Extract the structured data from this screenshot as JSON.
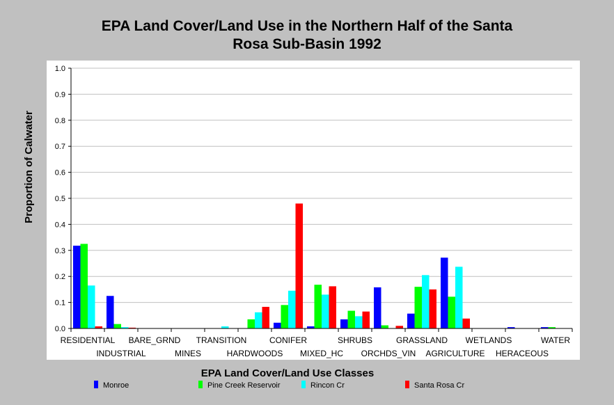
{
  "chart_data": {
    "type": "bar",
    "title_line1": "EPA Land Cover/Land Use in the Northern Half of the Santa",
    "title_line2": "Rosa Sub-Basin 1992",
    "xlabel": "EPA Land Cover/Land Use Classes",
    "ylabel": "Proportion of Calwater",
    "ylim": [
      0,
      1.0
    ],
    "yticks": [
      "0.0",
      "0.1",
      "0.2",
      "0.3",
      "0.4",
      "0.5",
      "0.6",
      "0.7",
      "0.8",
      "0.9",
      "1.0"
    ],
    "grid": true,
    "legend_position": "bottom",
    "categories": [
      "RESIDENTIAL",
      "INDUSTRIAL",
      "BARE_GRND",
      "MINES",
      "TRANSITION",
      "HARDWOODS",
      "CONIFER",
      "MIXED_HC",
      "SHRUBS",
      "ORCHDS_VIN",
      "GRASSLAND",
      "AGRICULTURE",
      "WETLANDS",
      "HERACEOUS",
      "WATER"
    ],
    "series": [
      {
        "name": "Monroe",
        "color": "#0000ff",
        "values": [
          0.318,
          0.125,
          0,
          0,
          0,
          0,
          0.022,
          0.008,
          0.035,
          0.158,
          0.057,
          0.272,
          0,
          0.005,
          0.005
        ]
      },
      {
        "name": "Pine Creek Reservoir",
        "color": "#00ff00",
        "values": [
          0.325,
          0.017,
          0,
          0,
          0,
          0.035,
          0.09,
          0.168,
          0.068,
          0.012,
          0.16,
          0.122,
          0,
          0,
          0.005
        ]
      },
      {
        "name": "Rincon Cr",
        "color": "#00ffff",
        "values": [
          0.165,
          0.005,
          0,
          0,
          0.008,
          0.062,
          0.145,
          0.13,
          0.047,
          0,
          0.205,
          0.237,
          0,
          0,
          0
        ]
      },
      {
        "name": "Santa Rosa Cr",
        "color": "#ff0000",
        "values": [
          0.008,
          0.003,
          0,
          0,
          0,
          0.083,
          0.48,
          0.162,
          0.065,
          0.01,
          0.15,
          0.038,
          0,
          0,
          0
        ]
      }
    ]
  }
}
